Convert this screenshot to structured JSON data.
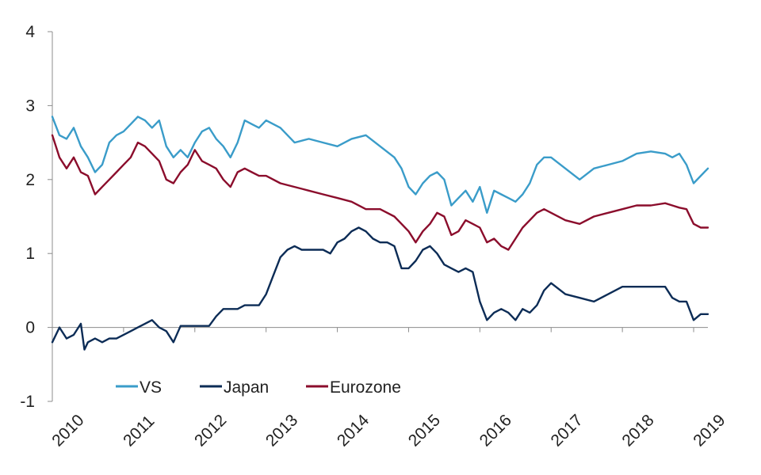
{
  "chart_data": {
    "type": "line",
    "title": "",
    "xlabel": "",
    "ylabel": "",
    "ylim": [
      -1,
      4
    ],
    "xlim": [
      2010,
      2019.2
    ],
    "y_ticks": [
      "4",
      "3",
      "2",
      "1",
      "0",
      "-1"
    ],
    "x_ticks": [
      "2010",
      "2011",
      "2012",
      "2013",
      "2014",
      "2015",
      "2016",
      "2017",
      "2018",
      "2019"
    ],
    "grid": false,
    "legend_position": "bottom-left",
    "series": [
      {
        "name": "VS",
        "color": "#3a9cc9",
        "x": [
          2010.0,
          2010.1,
          2010.2,
          2010.3,
          2010.4,
          2010.5,
          2010.6,
          2010.7,
          2010.8,
          2010.9,
          2011.0,
          2011.1,
          2011.2,
          2011.3,
          2011.4,
          2011.5,
          2011.6,
          2011.7,
          2011.8,
          2011.9,
          2012.0,
          2012.1,
          2012.2,
          2012.3,
          2012.4,
          2012.5,
          2012.6,
          2012.7,
          2012.8,
          2012.9,
          2013.0,
          2013.2,
          2013.4,
          2013.6,
          2013.8,
          2014.0,
          2014.2,
          2014.4,
          2014.6,
          2014.8,
          2014.9,
          2015.0,
          2015.1,
          2015.2,
          2015.3,
          2015.4,
          2015.5,
          2015.6,
          2015.7,
          2015.8,
          2015.9,
          2016.0,
          2016.1,
          2016.2,
          2016.3,
          2016.4,
          2016.5,
          2016.6,
          2016.7,
          2016.8,
          2016.9,
          2017.0,
          2017.2,
          2017.4,
          2017.6,
          2017.8,
          2018.0,
          2018.2,
          2018.4,
          2018.6,
          2018.7,
          2018.8,
          2018.9,
          2019.0,
          2019.2
        ],
        "values": [
          2.85,
          2.6,
          2.55,
          2.7,
          2.45,
          2.3,
          2.1,
          2.2,
          2.5,
          2.6,
          2.65,
          2.75,
          2.85,
          2.8,
          2.7,
          2.8,
          2.45,
          2.3,
          2.4,
          2.3,
          2.5,
          2.65,
          2.7,
          2.55,
          2.45,
          2.3,
          2.5,
          2.8,
          2.75,
          2.7,
          2.8,
          2.7,
          2.5,
          2.55,
          2.5,
          2.45,
          2.55,
          2.6,
          2.45,
          2.3,
          2.15,
          1.9,
          1.8,
          1.95,
          2.05,
          2.1,
          2.0,
          1.65,
          1.75,
          1.85,
          1.7,
          1.9,
          1.55,
          1.85,
          1.8,
          1.75,
          1.7,
          1.8,
          1.95,
          2.2,
          2.3,
          2.3,
          2.15,
          2.0,
          2.15,
          2.2,
          2.25,
          2.35,
          2.38,
          2.35,
          2.3,
          2.35,
          2.2,
          1.95,
          2.15
        ]
      },
      {
        "name": "Japan",
        "color": "#0c2c56",
        "x": [
          2010.0,
          2010.1,
          2010.2,
          2010.3,
          2010.4,
          2010.45,
          2010.5,
          2010.6,
          2010.7,
          2010.8,
          2010.9,
          2011.0,
          2011.1,
          2011.2,
          2011.3,
          2011.4,
          2011.5,
          2011.6,
          2011.7,
          2011.8,
          2011.9,
          2012.0,
          2012.1,
          2012.2,
          2012.3,
          2012.4,
          2012.5,
          2012.6,
          2012.7,
          2012.8,
          2012.9,
          2013.0,
          2013.1,
          2013.2,
          2013.3,
          2013.4,
          2013.5,
          2013.6,
          2013.7,
          2013.8,
          2013.9,
          2014.0,
          2014.1,
          2014.2,
          2014.3,
          2014.4,
          2014.5,
          2014.6,
          2014.7,
          2014.8,
          2014.9,
          2015.0,
          2015.1,
          2015.2,
          2015.3,
          2015.4,
          2015.5,
          2015.6,
          2015.7,
          2015.8,
          2015.9,
          2016.0,
          2016.1,
          2016.2,
          2016.3,
          2016.4,
          2016.5,
          2016.6,
          2016.7,
          2016.8,
          2016.9,
          2017.0,
          2017.2,
          2017.4,
          2017.6,
          2017.8,
          2018.0,
          2018.2,
          2018.4,
          2018.6,
          2018.7,
          2018.8,
          2018.9,
          2019.0,
          2019.1,
          2019.2
        ],
        "values": [
          -0.2,
          0.0,
          -0.15,
          -0.1,
          0.05,
          -0.3,
          -0.2,
          -0.15,
          -0.2,
          -0.15,
          -0.15,
          -0.1,
          -0.05,
          0.0,
          0.05,
          0.1,
          0.0,
          -0.05,
          -0.2,
          0.02,
          0.02,
          0.02,
          0.02,
          0.02,
          0.15,
          0.25,
          0.25,
          0.25,
          0.3,
          0.3,
          0.3,
          0.45,
          0.7,
          0.95,
          1.05,
          1.1,
          1.05,
          1.05,
          1.05,
          1.05,
          1.0,
          1.15,
          1.2,
          1.3,
          1.35,
          1.3,
          1.2,
          1.15,
          1.15,
          1.1,
          0.8,
          0.8,
          0.9,
          1.05,
          1.1,
          1.0,
          0.85,
          0.8,
          0.75,
          0.8,
          0.75,
          0.35,
          0.1,
          0.2,
          0.25,
          0.2,
          0.1,
          0.25,
          0.2,
          0.3,
          0.5,
          0.6,
          0.45,
          0.4,
          0.35,
          0.45,
          0.55,
          0.55,
          0.55,
          0.55,
          0.4,
          0.35,
          0.35,
          0.1,
          0.18,
          0.18
        ]
      },
      {
        "name": "Eurozone",
        "color": "#8b0d2c",
        "x": [
          2010.0,
          2010.1,
          2010.2,
          2010.3,
          2010.4,
          2010.5,
          2010.6,
          2010.7,
          2010.8,
          2010.9,
          2011.0,
          2011.1,
          2011.2,
          2011.3,
          2011.4,
          2011.5,
          2011.6,
          2011.7,
          2011.8,
          2011.9,
          2012.0,
          2012.1,
          2012.2,
          2012.3,
          2012.4,
          2012.5,
          2012.6,
          2012.7,
          2012.8,
          2012.9,
          2013.0,
          2013.2,
          2013.4,
          2013.6,
          2013.8,
          2014.0,
          2014.2,
          2014.4,
          2014.6,
          2014.8,
          2014.9,
          2015.0,
          2015.1,
          2015.2,
          2015.3,
          2015.4,
          2015.5,
          2015.6,
          2015.7,
          2015.8,
          2015.9,
          2016.0,
          2016.1,
          2016.2,
          2016.3,
          2016.4,
          2016.5,
          2016.6,
          2016.7,
          2016.8,
          2016.9,
          2017.0,
          2017.2,
          2017.4,
          2017.6,
          2017.8,
          2018.0,
          2018.2,
          2018.4,
          2018.6,
          2018.7,
          2018.8,
          2018.9,
          2019.0,
          2019.1,
          2019.2
        ],
        "values": [
          2.6,
          2.3,
          2.15,
          2.3,
          2.1,
          2.05,
          1.8,
          1.9,
          2.0,
          2.1,
          2.2,
          2.3,
          2.5,
          2.45,
          2.35,
          2.25,
          2.0,
          1.95,
          2.1,
          2.2,
          2.4,
          2.25,
          2.2,
          2.15,
          2.0,
          1.9,
          2.1,
          2.15,
          2.1,
          2.05,
          2.05,
          1.95,
          1.9,
          1.85,
          1.8,
          1.75,
          1.7,
          1.6,
          1.6,
          1.5,
          1.4,
          1.3,
          1.15,
          1.3,
          1.4,
          1.55,
          1.5,
          1.25,
          1.3,
          1.45,
          1.4,
          1.35,
          1.15,
          1.2,
          1.1,
          1.05,
          1.2,
          1.35,
          1.45,
          1.55,
          1.6,
          1.55,
          1.45,
          1.4,
          1.5,
          1.55,
          1.6,
          1.65,
          1.65,
          1.68,
          1.65,
          1.62,
          1.6,
          1.4,
          1.35,
          1.35
        ]
      }
    ]
  }
}
